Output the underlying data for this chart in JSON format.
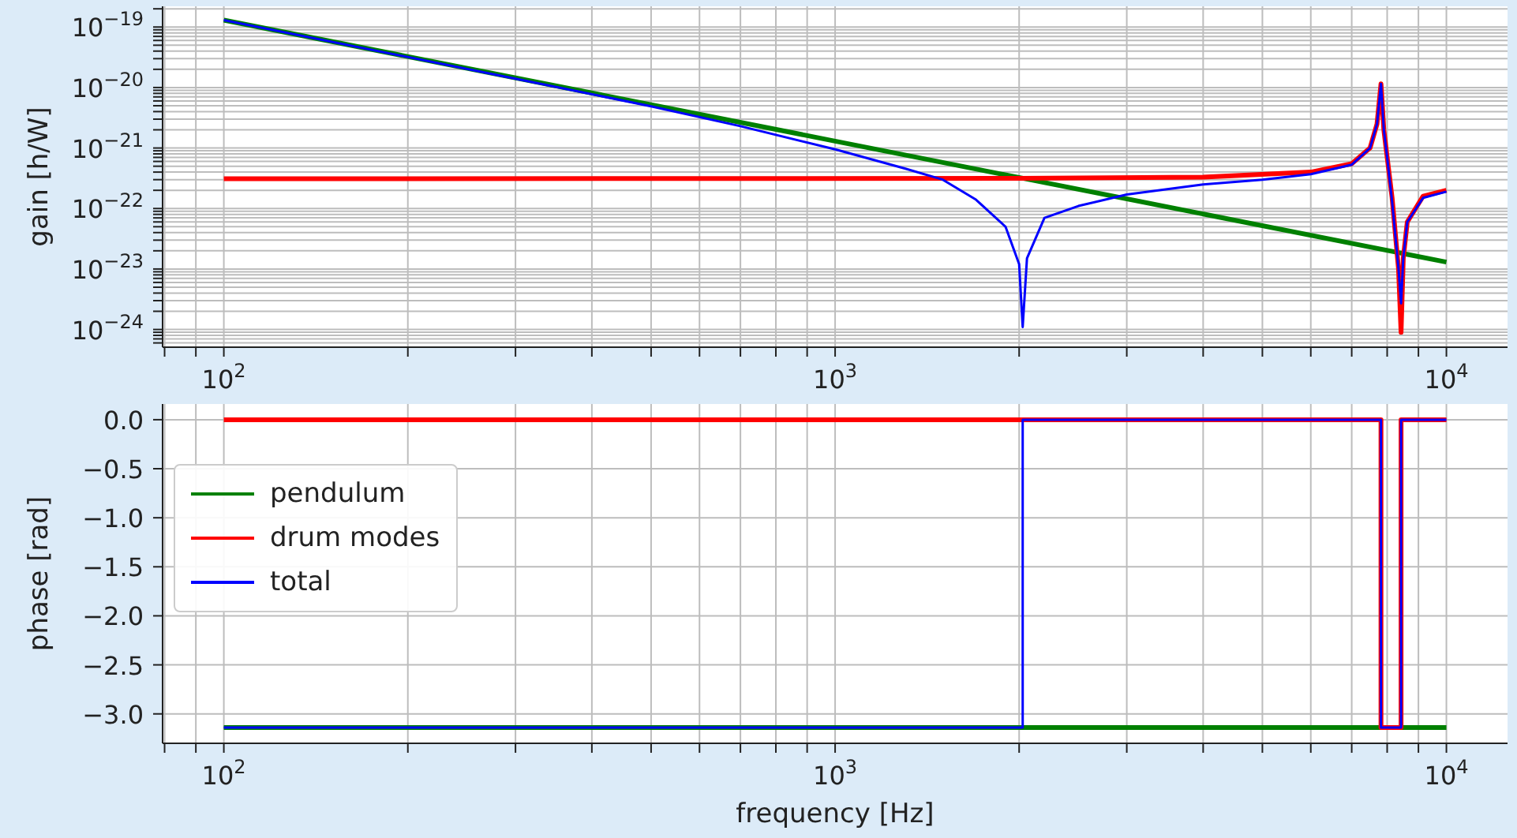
{
  "chart_data": [
    {
      "type": "line",
      "ylabel": "gain [h/W]",
      "log": "xy",
      "grid": true,
      "legend": false,
      "marker": "none",
      "line_style": "solid",
      "xlim": [
        79.4,
        12589
      ],
      "ylim": [
        5.1e-25,
        2.2e-19
      ],
      "xticks": [
        {
          "value": 80,
          "label": null
        },
        {
          "value": 90,
          "label": null
        },
        {
          "value": 100,
          "label": "10$^{2}$"
        },
        {
          "value": 200,
          "label": null
        },
        {
          "value": 300,
          "label": null
        },
        {
          "value": 400,
          "label": null
        },
        {
          "value": 500,
          "label": null
        },
        {
          "value": 600,
          "label": null
        },
        {
          "value": 700,
          "label": null
        },
        {
          "value": 800,
          "label": null
        },
        {
          "value": 900,
          "label": null
        },
        {
          "value": 1000,
          "label": "10$^{3}$"
        },
        {
          "value": 2000,
          "label": null
        },
        {
          "value": 3000,
          "label": null
        },
        {
          "value": 4000,
          "label": null
        },
        {
          "value": 5000,
          "label": null
        },
        {
          "value": 6000,
          "label": null
        },
        {
          "value": 7000,
          "label": null
        },
        {
          "value": 8000,
          "label": null
        },
        {
          "value": 9000,
          "label": null
        },
        {
          "value": 10000,
          "label": "10$^{4}$"
        }
      ],
      "yticks": [
        {
          "value": 6e-25,
          "label": null
        },
        {
          "value": 7e-25,
          "label": null
        },
        {
          "value": 8e-25,
          "label": null
        },
        {
          "value": 9e-25,
          "label": null
        },
        {
          "value": 1e-24,
          "label": "10$^{−24}$"
        },
        {
          "value": 2e-24,
          "label": null
        },
        {
          "value": 3e-24,
          "label": null
        },
        {
          "value": 4e-24,
          "label": null
        },
        {
          "value": 5e-24,
          "label": null
        },
        {
          "value": 6e-24,
          "label": null
        },
        {
          "value": 7e-24,
          "label": null
        },
        {
          "value": 8e-24,
          "label": null
        },
        {
          "value": 9e-24,
          "label": null
        },
        {
          "value": 1e-23,
          "label": "10$^{−23}$"
        },
        {
          "value": 2e-23,
          "label": null
        },
        {
          "value": 3e-23,
          "label": null
        },
        {
          "value": 4e-23,
          "label": null
        },
        {
          "value": 5e-23,
          "label": null
        },
        {
          "value": 6e-23,
          "label": null
        },
        {
          "value": 7e-23,
          "label": null
        },
        {
          "value": 8e-23,
          "label": null
        },
        {
          "value": 9e-23,
          "label": null
        },
        {
          "value": 1e-22,
          "label": "10$^{−22}$"
        },
        {
          "value": 2e-22,
          "label": null
        },
        {
          "value": 3e-22,
          "label": null
        },
        {
          "value": 4e-22,
          "label": null
        },
        {
          "value": 5e-22,
          "label": null
        },
        {
          "value": 6e-22,
          "label": null
        },
        {
          "value": 7e-22,
          "label": null
        },
        {
          "value": 8e-22,
          "label": null
        },
        {
          "value": 9e-22,
          "label": null
        },
        {
          "value": 1e-21,
          "label": "10$^{−21}$"
        },
        {
          "value": 2e-21,
          "label": null
        },
        {
          "value": 3e-21,
          "label": null
        },
        {
          "value": 4e-21,
          "label": null
        },
        {
          "value": 5e-21,
          "label": null
        },
        {
          "value": 6e-21,
          "label": null
        },
        {
          "value": 7e-21,
          "label": null
        },
        {
          "value": 8e-21,
          "label": null
        },
        {
          "value": 9e-21,
          "label": null
        },
        {
          "value": 1e-20,
          "label": "10$^{−20}$"
        },
        {
          "value": 2e-20,
          "label": null
        },
        {
          "value": 3e-20,
          "label": null
        },
        {
          "value": 4e-20,
          "label": null
        },
        {
          "value": 5e-20,
          "label": null
        },
        {
          "value": 6e-20,
          "label": null
        },
        {
          "value": 7e-20,
          "label": null
        },
        {
          "value": 8e-20,
          "label": null
        },
        {
          "value": 9e-20,
          "label": null
        },
        {
          "value": 1e-19,
          "label": "10$^{−19}$"
        },
        {
          "value": 2e-19,
          "label": null
        }
      ],
      "series": [
        {
          "color": "#008000",
          "x": [
            100,
            1000,
            10000
          ],
          "values": [
            1.3e-19,
            1.3e-21,
            1.3e-23
          ]
        },
        {
          "color": "#ff0000",
          "x": [
            100,
            2000,
            4000,
            6000,
            7000,
            7500,
            7700,
            7816,
            7900,
            8000,
            8150,
            8350,
            8430,
            8500,
            8630,
            9160,
            10000
          ],
          "values": [
            3.1e-22,
            3.15e-22,
            3.3e-22,
            4e-22,
            5.5e-22,
            1e-21,
            2.5e-21,
            1.15e-20,
            2e-21,
            7e-22,
            1.5e-22,
            1e-23,
            9e-25,
            1.5e-23,
            6e-23,
            1.6e-22,
            2e-22
          ]
        },
        {
          "color": "#0000ff",
          "x": [
            100,
            300,
            500,
            700,
            1000,
            1300,
            1500,
            1700,
            1900,
            2000,
            2027,
            2060,
            2200,
            2500,
            3000,
            4000,
            5000,
            6000,
            7000,
            7500,
            7700,
            7816,
            7900,
            8000,
            8150,
            8350,
            8430,
            8500,
            8630,
            9160,
            10000
          ],
          "values": [
            1.3e-19,
            1.4e-20,
            4.9e-21,
            2.3e-21,
            9.5e-22,
            4.6e-22,
            3e-22,
            1.4e-22,
            5e-23,
            1.2e-23,
            1.1e-24,
            1.5e-23,
            7e-23,
            1.1e-22,
            1.7e-22,
            2.5e-22,
            3e-22,
            3.7e-22,
            5.3e-22,
            1e-21,
            2.5e-21,
            1.15e-20,
            2e-21,
            7e-22,
            1.3e-22,
            1e-23,
            2.7e-24,
            1.5e-23,
            6e-23,
            1.5e-22,
            1.9e-22
          ]
        }
      ]
    },
    {
      "type": "line",
      "xlabel": "frequency [Hz]",
      "ylabel": "phase [rad]",
      "log": "x",
      "grid": true,
      "legend": "left",
      "marker": "none",
      "line_style": "solid",
      "xlim": [
        79.4,
        12589
      ],
      "ylim": [
        -3.3,
        0.16
      ],
      "xticks": [
        {
          "value": 80,
          "label": null
        },
        {
          "value": 90,
          "label": null
        },
        {
          "value": 100,
          "label": "10$^{2}$"
        },
        {
          "value": 200,
          "label": null
        },
        {
          "value": 300,
          "label": null
        },
        {
          "value": 400,
          "label": null
        },
        {
          "value": 500,
          "label": null
        },
        {
          "value": 600,
          "label": null
        },
        {
          "value": 700,
          "label": null
        },
        {
          "value": 800,
          "label": null
        },
        {
          "value": 900,
          "label": null
        },
        {
          "value": 1000,
          "label": "10$^{3}$"
        },
        {
          "value": 2000,
          "label": null
        },
        {
          "value": 3000,
          "label": null
        },
        {
          "value": 4000,
          "label": null
        },
        {
          "value": 5000,
          "label": null
        },
        {
          "value": 6000,
          "label": null
        },
        {
          "value": 7000,
          "label": null
        },
        {
          "value": 8000,
          "label": null
        },
        {
          "value": 9000,
          "label": null
        },
        {
          "value": 10000,
          "label": "10$^{4}$"
        }
      ],
      "yticks": [
        {
          "value": 0,
          "label": "0.0"
        },
        {
          "value": -0.5,
          "label": "−0.5"
        },
        {
          "value": -1,
          "label": "−1.0"
        },
        {
          "value": -1.5,
          "label": "−1.5"
        },
        {
          "value": -2,
          "label": "−2.0"
        },
        {
          "value": -2.5,
          "label": "−2.5"
        },
        {
          "value": -3,
          "label": "−3.0"
        }
      ],
      "series": [
        {
          "name": "pendulum",
          "color": "#008000",
          "x": [
            100,
            10000
          ],
          "values": [
            -3.14,
            -3.14
          ]
        },
        {
          "name": "drum modes",
          "color": "#ff0000",
          "x": [
            100,
            7816,
            7816,
            8430,
            8430,
            10000
          ],
          "values": [
            0,
            0,
            -3.14,
            -3.14,
            0,
            0
          ]
        },
        {
          "name": "total",
          "color": "#0000ff",
          "x": [
            100,
            2027,
            2027,
            7816,
            7816,
            8430,
            8430,
            10000
          ],
          "values": [
            -3.14,
            -3.14,
            0,
            0,
            -3.14,
            -3.14,
            0,
            0
          ]
        }
      ]
    }
  ]
}
